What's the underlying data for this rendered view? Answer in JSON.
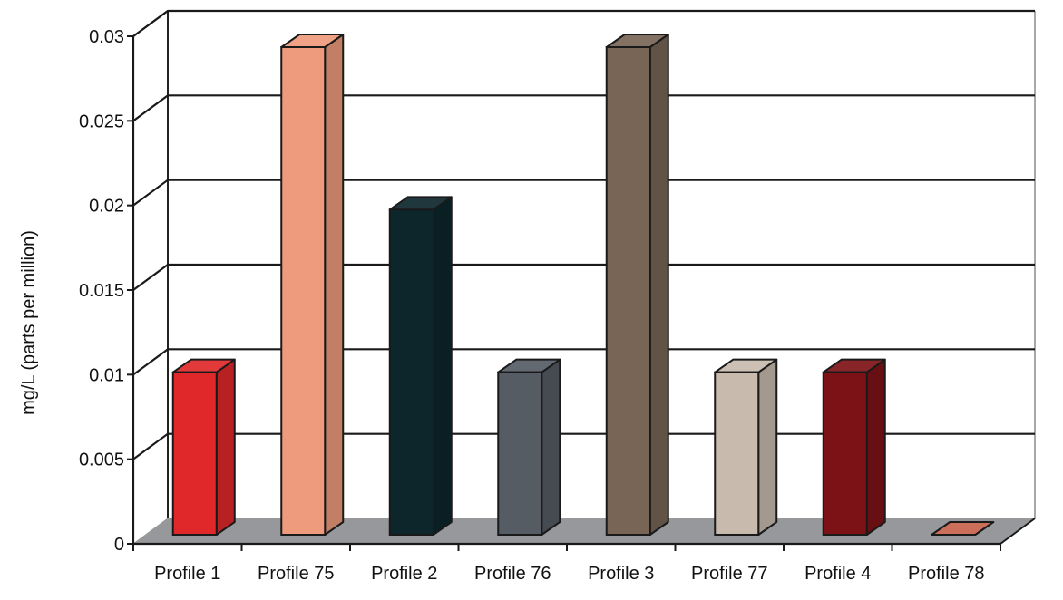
{
  "chart_data": {
    "type": "bar",
    "style": "3d-column",
    "categories": [
      "Profile 1",
      "Profile 75",
      "Profile 2",
      "Profile 76",
      "Profile 3",
      "Profile 77",
      "Profile 4",
      "Profile 78"
    ],
    "values": [
      0.01,
      0.03,
      0.02,
      0.01,
      0.03,
      0.01,
      0.01,
      0
    ],
    "colors": [
      "#e0282a",
      "#ee9a7c",
      "#0c262c",
      "#555c64",
      "#786556",
      "#c8bbae",
      "#7d1216",
      "#c8624c"
    ],
    "ylabel": "mg/L (parts per million)",
    "xlabel": "",
    "ylim": [
      0,
      0.03
    ],
    "yticks": [
      "0",
      "0.005",
      "0.01",
      "0.015",
      "0.02",
      "0.025",
      "0.03"
    ],
    "ytick_values": [
      0,
      0.005,
      0.01,
      0.015,
      0.02,
      0.025,
      0.03
    ],
    "grid": true,
    "legend": "none",
    "floor_color": "#97989b"
  }
}
